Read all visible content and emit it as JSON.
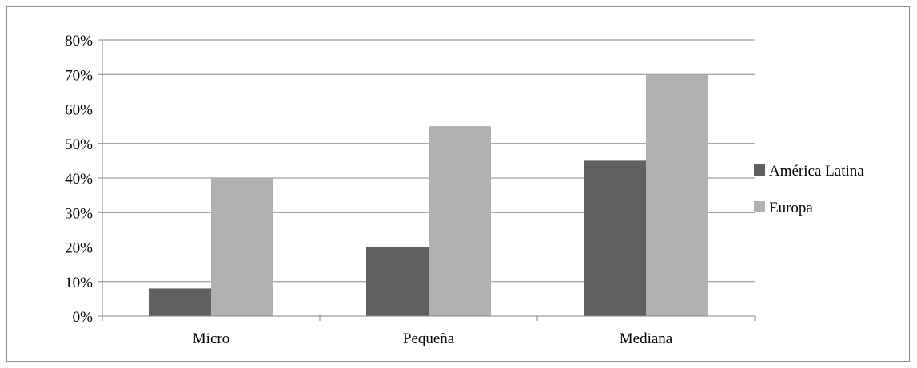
{
  "chart_data": {
    "type": "bar",
    "categories": [
      "Micro",
      "Pequeña",
      "Mediana"
    ],
    "series": [
      {
        "name": "América Latina",
        "values": [
          8,
          20,
          45
        ],
        "color": "#606060"
      },
      {
        "name": "Europa",
        "values": [
          40,
          55,
          70
        ],
        "color": "#b1b1b1"
      }
    ],
    "ylim": [
      0,
      80
    ],
    "ytick_step": 10,
    "ytick_labels": [
      "0%",
      "10%",
      "20%",
      "30%",
      "40%",
      "50%",
      "60%",
      "70%",
      "80%"
    ],
    "grid": true,
    "legend_position": "right",
    "title": "",
    "xlabel": "",
    "ylabel": ""
  }
}
